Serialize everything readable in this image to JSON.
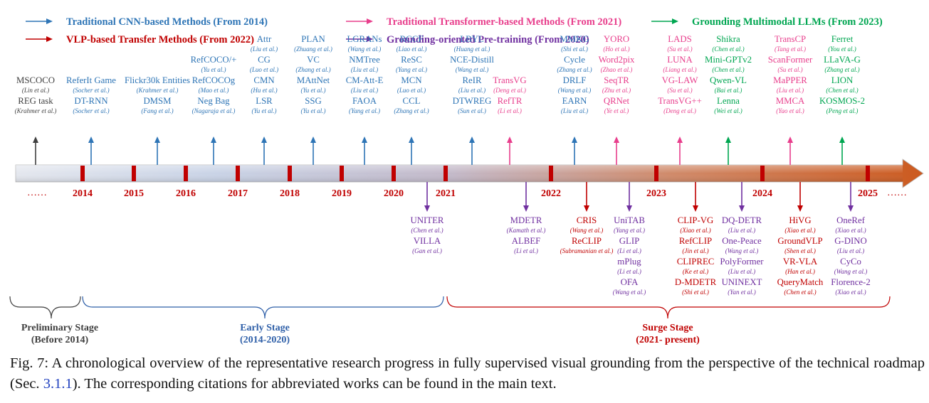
{
  "legend": [
    {
      "label": "Traditional CNN-based Methods (From 2014)",
      "color": "#2e75b6"
    },
    {
      "label": "VLP-based Transfer Methods (From 2022)",
      "color": "#c00000"
    },
    {
      "label": "Traditional Transformer-based Methods (From 2021)",
      "color": "#e83e8c"
    },
    {
      "label": "Grounding-oriented Pre-training (From 2020)",
      "color": "#7030a0"
    },
    {
      "label": "Grounding Multimodal LLMs (From 2023)",
      "color": "#00a651"
    }
  ],
  "years": [
    "2014",
    "2015",
    "2016",
    "2017",
    "2018",
    "2019",
    "2020",
    "2021",
    "2022",
    "2023",
    "2024",
    "2025"
  ],
  "ellipsis": "……",
  "above_groups": [
    {
      "color": "#404040",
      "entries": [
        [
          "MSCOCO",
          "(Lin et al.)"
        ],
        [
          "REG task",
          "(Krahmer et al.)"
        ]
      ]
    },
    {
      "color": "#2e75b6",
      "entries": [
        [
          "ReferIt Game",
          "(Socher et al.)"
        ],
        [
          "DT-RNN",
          "(Socher et al.)"
        ]
      ]
    },
    {
      "color": "#2e75b6",
      "entries": [
        [
          "Flickr30k Entities",
          "(Krahmer et al.)"
        ],
        [
          "DMSM",
          "(Fang et al.)"
        ]
      ]
    },
    {
      "color": "#2e75b6",
      "entries": [
        [
          "RefCOCO/+",
          "(Yu et al.)"
        ],
        [
          "RefCOCOg",
          "(Mao et al.)"
        ],
        [
          "Neg Bag",
          "(Nagaraja et al.)"
        ]
      ]
    },
    {
      "color": "#2e75b6",
      "entries": [
        [
          "Attr",
          "(Liu et al.)"
        ],
        [
          "CG",
          "(Luo et al.)"
        ],
        [
          "CMN",
          "(Hu et al.)"
        ],
        [
          "LSR",
          "(Yu et al.)"
        ]
      ]
    },
    {
      "color": "#2e75b6",
      "entries": [
        [
          "PLAN",
          "(Zhuang et al.)"
        ],
        [
          "VC",
          "(Zhang et al.)"
        ],
        [
          "MAttNet",
          "(Yu et al.)"
        ],
        [
          "SSG",
          "(Yu et al.)"
        ]
      ]
    },
    {
      "color": "#2e75b6",
      "entries": [
        [
          "LGRANs",
          "(Wang et al.)"
        ],
        [
          "NMTree",
          "(Liu et al.)"
        ],
        [
          "CM-Att-E",
          "(Liu et al.)"
        ],
        [
          "FAOA",
          "(Yang et al.)"
        ]
      ]
    },
    {
      "color": "#2e75b6",
      "entries": [
        [
          "RCCF",
          "(Liao et al.)"
        ],
        [
          "ReSC",
          "(Yang et al.)"
        ],
        [
          "MCN",
          "(Luo et al.)"
        ],
        [
          "CCL",
          "(Zhang et al.)"
        ]
      ]
    },
    {
      "color": "#2e75b6",
      "entries": [
        [
          "LBYL",
          "(Huang et al.)"
        ],
        [
          "NCE-Distill",
          "(Wang et al.)"
        ],
        [
          "ReIR",
          "(Liu et al.)"
        ],
        [
          "DTWREG",
          "(Sun et al.)"
        ]
      ]
    },
    {
      "color": "#e83e8c",
      "entries": [
        [
          "TransVG",
          "(Deng et al.)"
        ],
        [
          "RefTR",
          "(Li et al.)"
        ]
      ]
    },
    {
      "color": "#2e75b6",
      "entries": [
        [
          "MMKG",
          "(Shi et al.)"
        ],
        [
          "Cycle",
          "(Zhang et al.)"
        ],
        [
          "DRLF",
          "(Wang et al.)"
        ],
        [
          "EARN",
          "(Liu et al.)"
        ]
      ]
    },
    {
      "color": "#e83e8c",
      "entries": [
        [
          "YORO",
          "(Ho et al.)"
        ],
        [
          "Word2pix",
          "(Zhao et al.)"
        ],
        [
          "SeqTR",
          "(Zhu et al.)"
        ],
        [
          "QRNet",
          "(Ye et al.)"
        ]
      ]
    },
    {
      "color": "#e83e8c",
      "entries": [
        [
          "LADS",
          "(Su et al.)"
        ],
        [
          "LUNA",
          "(Liang et al.)"
        ],
        [
          "VG-LAW",
          "(Su et al.)"
        ],
        [
          "TransVG++",
          "(Deng et al.)"
        ]
      ]
    },
    {
      "color": "#00a651",
      "entries": [
        [
          "Shikra",
          "(Chen et al.)"
        ],
        [
          "Mini-GPTv2",
          "(Chen et al.)"
        ],
        [
          "Qwen-VL",
          "(Bai et al.)"
        ],
        [
          "Lenna",
          "(Wei et al.)"
        ]
      ]
    },
    {
      "color": "#e83e8c",
      "entries": [
        [
          "TransCP",
          "(Tang et al.)"
        ],
        [
          "ScanFormer",
          "(Su et al.)"
        ],
        [
          "MaPPER",
          "(Liu et al.)"
        ],
        [
          "MMCA",
          "(Yao et al.)"
        ]
      ]
    },
    {
      "color": "#00a651",
      "entries": [
        [
          "Ferret",
          "(You et al.)"
        ],
        [
          "LLaVA-G",
          "(Zhang et al.)"
        ],
        [
          "LION",
          "(Chen et al.)"
        ],
        [
          "KOSMOS-2",
          "(Peng et al.)"
        ]
      ]
    }
  ],
  "below_groups": [
    {
      "color": "#7030a0",
      "entries": [
        [
          "UNITER",
          "(Chen et al.)"
        ],
        [
          "VILLA",
          "(Gan et al.)"
        ]
      ]
    },
    {
      "color": "#7030a0",
      "entries": [
        [
          "MDETR",
          "(Kamath et al.)"
        ],
        [
          "ALBEF",
          "(Li et al.)"
        ]
      ]
    },
    {
      "color": "#c00000",
      "entries": [
        [
          "CRIS",
          "(Wang et al.)"
        ],
        [
          "ReCLIP",
          "(Subramanian et al.)"
        ]
      ]
    },
    {
      "color": "#7030a0",
      "entries": [
        [
          "UniTAB",
          "(Yang et al.)"
        ],
        [
          "GLIP",
          "(Li et al.)"
        ],
        [
          "mPlug",
          "(Li et al.)"
        ],
        [
          "OFA",
          "(Wang et al.)"
        ]
      ]
    },
    {
      "color": "#c00000",
      "entries": [
        [
          "CLIP-VG",
          "(Xiao et al.)"
        ],
        [
          "RefCLIP",
          "(Jin et al.)"
        ],
        [
          "CLIPREC",
          "(Ke et al.)"
        ],
        [
          "D-MDETR",
          "(Shi et al.)"
        ]
      ]
    },
    {
      "color": "#7030a0",
      "entries": [
        [
          "DQ-DETR",
          "(Liu et al.)"
        ],
        [
          "One-Peace",
          "(Wang et al.)"
        ],
        [
          "PolyFormer",
          "(Liu et al.)"
        ],
        [
          "UNINEXT",
          "(Yan et al.)"
        ]
      ]
    },
    {
      "color": "#c00000",
      "entries": [
        [
          "HiVG",
          "(Xiao et al.)"
        ],
        [
          "GroundVLP",
          "(Shen et al.)"
        ],
        [
          "VR-VLA",
          "(Han et al.)"
        ],
        [
          "QueryMatch",
          "(Chen et al.)"
        ]
      ]
    },
    {
      "color": "#7030a0",
      "entries": [
        [
          "OneRef",
          "(Xiao et al.)"
        ],
        [
          "G-DINO",
          "(Liu et al.)"
        ],
        [
          "CyCo",
          "(Wang et al.)"
        ],
        [
          "Florence-2",
          "(Xiao et al.)"
        ]
      ]
    }
  ],
  "stages": [
    {
      "name": "Preliminary Stage",
      "period": "(Before 2014)",
      "color": "#404040"
    },
    {
      "name": "Early Stage",
      "period": "(2014-2020)",
      "color": "#2e5fa8"
    },
    {
      "name": "Surge Stage",
      "period": "(2021- present)",
      "color": "#c00000"
    }
  ],
  "caption": {
    "before": "Fig. 7: A chronological overview of the representative research progress in fully supervised visual grounding from the perspective of the technical roadmap (Sec. ",
    "ref": "3.1.1",
    "after": "). The corresponding citations for abbreviated works can be found in the main text."
  }
}
